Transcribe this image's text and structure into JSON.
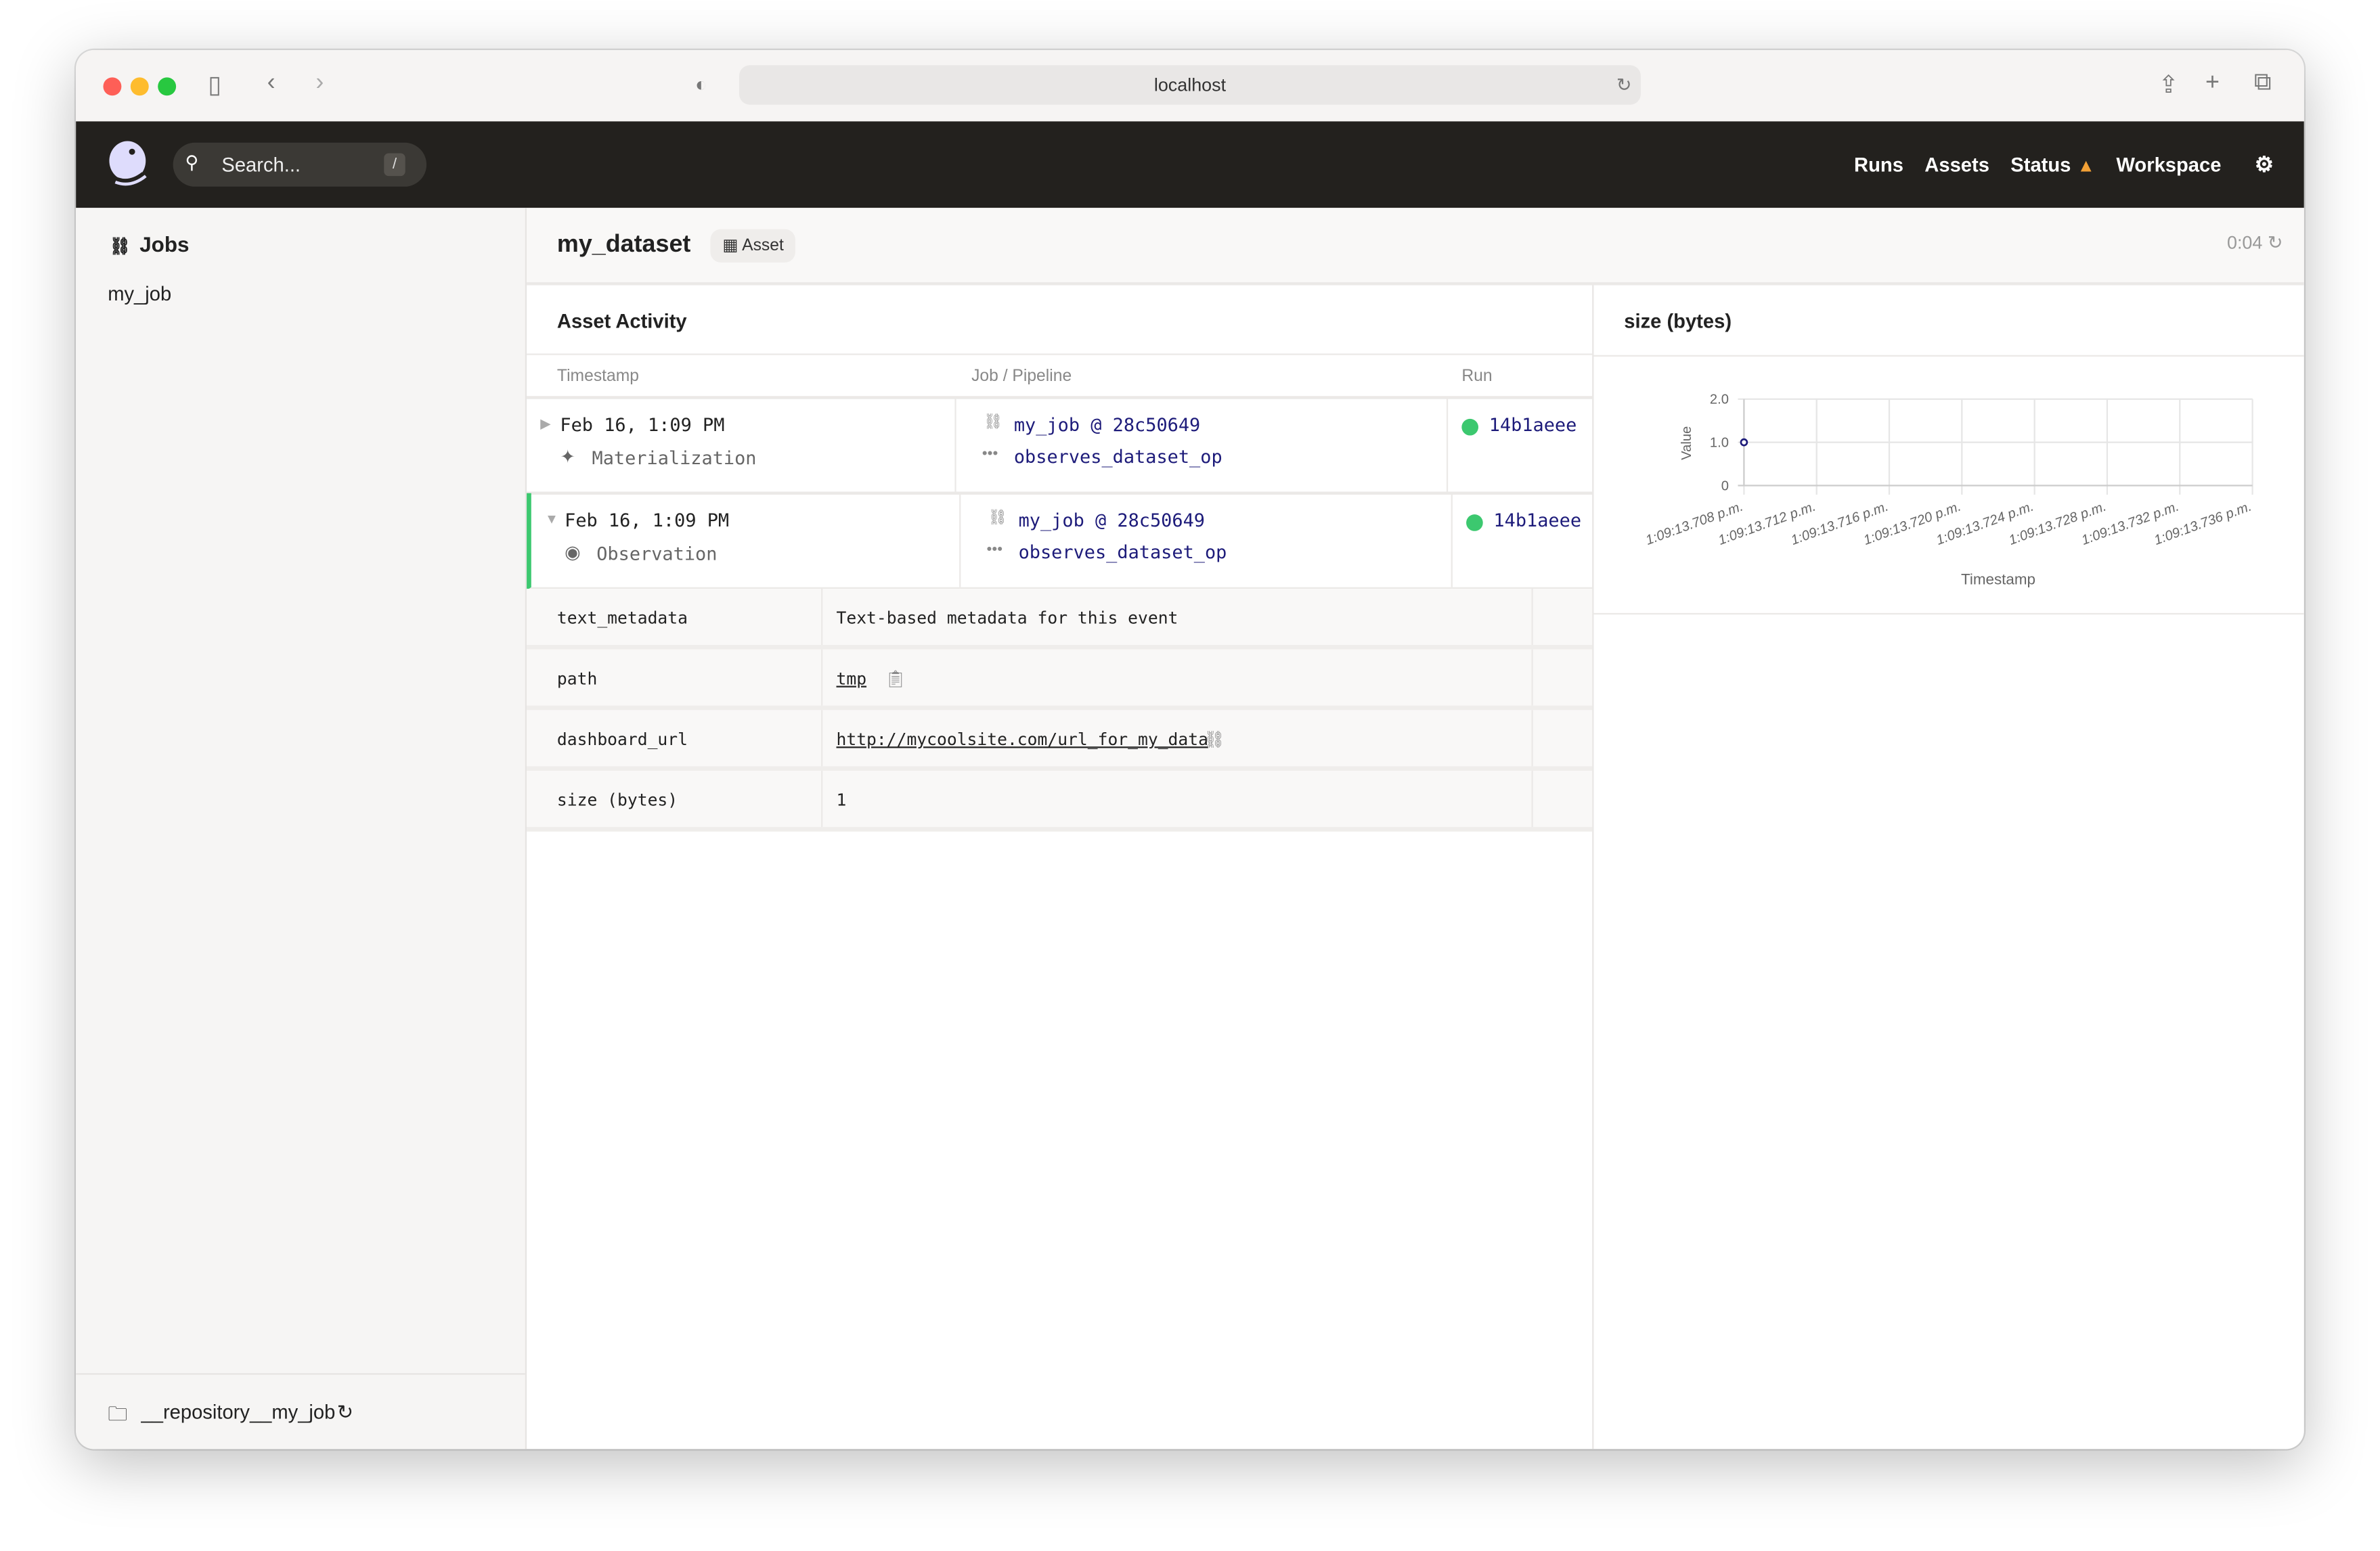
{
  "browser": {
    "url": "localhost"
  },
  "nav": {
    "search_placeholder": "Search...",
    "search_key": "/",
    "links": [
      "Runs",
      "Assets",
      "Status",
      "Workspace"
    ],
    "status_warning": true
  },
  "sidebar": {
    "title": "Jobs",
    "items": [
      "my_job"
    ],
    "repository": "__repository__my_job"
  },
  "header": {
    "title": "my_dataset",
    "badge": "Asset",
    "timer": "0:04"
  },
  "activity": {
    "title": "Asset Activity",
    "columns": [
      "Timestamp",
      "Job / Pipeline",
      "Run"
    ],
    "rows": [
      {
        "timestamp": "Feb 16, 1:09 PM",
        "type": "Materialization",
        "job": "my_job @ 28c50649",
        "op": "observes_dataset_op",
        "run": "14b1aeee",
        "expanded": false
      },
      {
        "timestamp": "Feb 16, 1:09 PM",
        "type": "Observation",
        "job": "my_job @ 28c50649",
        "op": "observes_dataset_op",
        "run": "14b1aeee",
        "expanded": true
      }
    ],
    "metadata": [
      {
        "key": "text_metadata",
        "value": "Text-based metadata for this event"
      },
      {
        "key": "path",
        "value": "tmp"
      },
      {
        "key": "dashboard_url",
        "value": "http://mycoolsite.com/url_for_my_data"
      },
      {
        "key": "size (bytes)",
        "value": "1"
      }
    ]
  },
  "colors": {
    "nav_bg": "#23211e",
    "success": "#3cc86f",
    "link": "#1d1b7a",
    "warning": "#f2a035"
  },
  "chart_data": {
    "type": "scatter",
    "title": "size (bytes)",
    "xlabel": "Timestamp",
    "ylabel": "Value",
    "x_ticks": [
      "1:09:13.708 p.m.",
      "1:09:13.712 p.m.",
      "1:09:13.716 p.m.",
      "1:09:13.720 p.m.",
      "1:09:13.724 p.m.",
      "1:09:13.728 p.m.",
      "1:09:13.732 p.m.",
      "1:09:13.736 p.m."
    ],
    "y_ticks": [
      "0",
      "1.0",
      "2.0"
    ],
    "ylim": [
      0,
      2
    ],
    "points": [
      {
        "x": "1:09:13.708 p.m.",
        "y": 1
      }
    ],
    "grid": true
  }
}
